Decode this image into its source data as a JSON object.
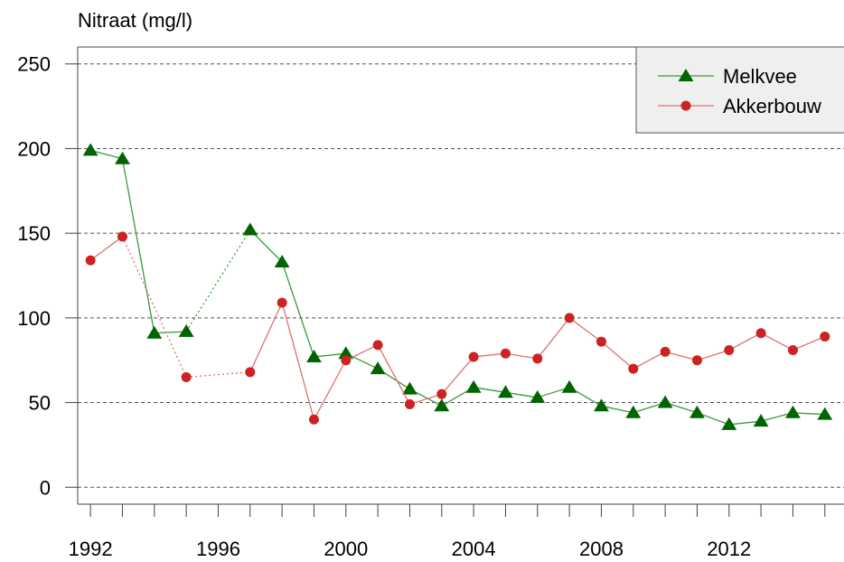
{
  "chart_data": {
    "type": "line",
    "ylabel": "Nitraat (mg/l)",
    "xlim": [
      1991.6,
      2015.6
    ],
    "ylim": [
      -10,
      260
    ],
    "yticks": [
      0,
      50,
      100,
      150,
      200,
      250
    ],
    "xticks": [
      1992,
      1996,
      2000,
      2004,
      2008,
      2012
    ],
    "grid": "horizontal dashed",
    "legend_position": "top-right",
    "x": [
      1992,
      1993,
      1994,
      1995,
      1996,
      1997,
      1998,
      1999,
      2000,
      2001,
      2002,
      2003,
      2004,
      2005,
      2006,
      2007,
      2008,
      2009,
      2010,
      2011,
      2012,
      2013,
      2014,
      2015
    ],
    "series": [
      {
        "name": "Melkvee",
        "color": "#006400",
        "line_color": "#3a9a3a",
        "marker": "triangle",
        "values": [
          199,
          194,
          91,
          92,
          null,
          152,
          133,
          77,
          79,
          70,
          58,
          48,
          59,
          56,
          53,
          59,
          48,
          44,
          50,
          44,
          37,
          39,
          44,
          43
        ]
      },
      {
        "name": "Akkerbouw",
        "color": "#cc2222",
        "line_color": "#e07070",
        "marker": "circle",
        "values": [
          134,
          148,
          null,
          65,
          null,
          68,
          109,
          40,
          75,
          84,
          49,
          55,
          77,
          79,
          76,
          100,
          86,
          70,
          80,
          75,
          81,
          91,
          81,
          89
        ]
      }
    ]
  }
}
